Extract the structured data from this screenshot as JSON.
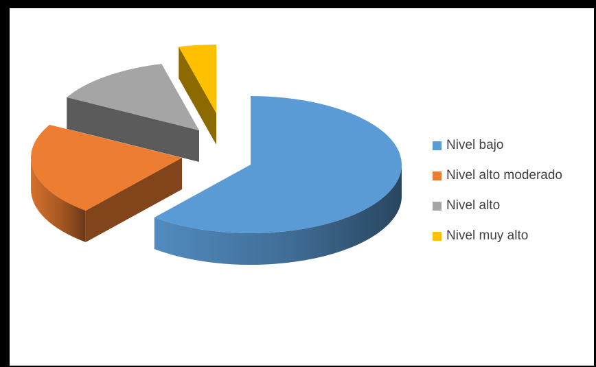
{
  "chart_data": {
    "type": "pie",
    "variant": "3d-exploded",
    "categories": [
      "Nivel bajo",
      "Nivel alto moderado",
      "Nivel alto",
      "Nivel muy alto"
    ],
    "values": [
      61,
      22,
      13,
      4
    ],
    "colors": [
      "#5B9BD5",
      "#ED7D31",
      "#A5A5A5",
      "#FFC000"
    ],
    "legend": "right"
  }
}
